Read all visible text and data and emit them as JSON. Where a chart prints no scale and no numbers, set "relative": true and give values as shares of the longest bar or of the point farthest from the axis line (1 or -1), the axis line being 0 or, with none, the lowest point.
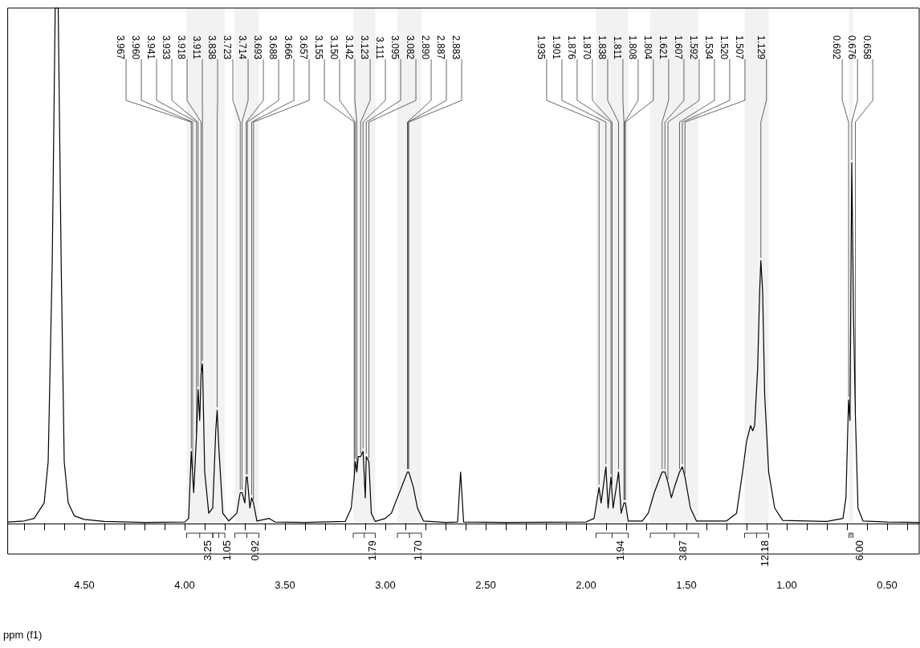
{
  "chart_data": {
    "type": "line",
    "relative": true,
    "xlabel": "ppm (f1)",
    "color": "#000000",
    "grid": false,
    "marker": "none",
    "line_style": "solid",
    "xlim": [
      4.88,
      0.34
    ],
    "xticks": [
      {
        "value": 4.8,
        "label": null
      },
      {
        "value": 4.7,
        "label": null
      },
      {
        "value": 4.6,
        "label": null
      },
      {
        "value": 4.5,
        "label": "4.50"
      },
      {
        "value": 4.4,
        "label": null
      },
      {
        "value": 4.3,
        "label": null
      },
      {
        "value": 4.2,
        "label": null
      },
      {
        "value": 4.1,
        "label": null
      },
      {
        "value": 4.0,
        "label": "4.00"
      },
      {
        "value": 3.9,
        "label": null
      },
      {
        "value": 3.8,
        "label": null
      },
      {
        "value": 3.7,
        "label": null
      },
      {
        "value": 3.6,
        "label": null
      },
      {
        "value": 3.5,
        "label": "3.50"
      },
      {
        "value": 3.4,
        "label": null
      },
      {
        "value": 3.3,
        "label": null
      },
      {
        "value": 3.2,
        "label": null
      },
      {
        "value": 3.1,
        "label": null
      },
      {
        "value": 3.0,
        "label": "3.00"
      },
      {
        "value": 2.9,
        "label": null
      },
      {
        "value": 2.8,
        "label": null
      },
      {
        "value": 2.7,
        "label": null
      },
      {
        "value": 2.6,
        "label": null
      },
      {
        "value": 2.5,
        "label": "2.50"
      },
      {
        "value": 2.4,
        "label": null
      },
      {
        "value": 2.3,
        "label": null
      },
      {
        "value": 2.2,
        "label": null
      },
      {
        "value": 2.1,
        "label": null
      },
      {
        "value": 2.0,
        "label": "2.00"
      },
      {
        "value": 1.9,
        "label": null
      },
      {
        "value": 1.8,
        "label": null
      },
      {
        "value": 1.7,
        "label": null
      },
      {
        "value": 1.6,
        "label": null
      },
      {
        "value": 1.5,
        "label": "1.50"
      },
      {
        "value": 1.4,
        "label": null
      },
      {
        "value": 1.3,
        "label": null
      },
      {
        "value": 1.2,
        "label": null
      },
      {
        "value": 1.1,
        "label": null
      },
      {
        "value": 1.0,
        "label": "1.00"
      },
      {
        "value": 0.9,
        "label": null
      },
      {
        "value": 0.8,
        "label": null
      },
      {
        "value": 0.7,
        "label": null
      },
      {
        "value": 0.6,
        "label": null
      },
      {
        "value": 0.5,
        "label": "0.50"
      },
      {
        "value": 0.4,
        "label": null
      }
    ],
    "x": [
      4.88,
      4.8,
      4.75,
      4.7,
      4.68,
      4.66,
      4.645,
      4.63,
      4.615,
      4.6,
      4.58,
      4.55,
      4.5,
      4.4,
      4.2,
      4.0,
      3.98,
      3.967,
      3.955,
      3.941,
      3.933,
      3.925,
      3.918,
      3.911,
      3.9,
      3.88,
      3.86,
      3.845,
      3.838,
      3.83,
      3.81,
      3.78,
      3.74,
      3.723,
      3.714,
      3.7,
      3.693,
      3.688,
      3.675,
      3.666,
      3.657,
      3.64,
      3.58,
      3.55,
      3.4,
      3.2,
      3.17,
      3.155,
      3.15,
      3.142,
      3.135,
      3.123,
      3.111,
      3.1,
      3.095,
      3.082,
      3.07,
      3.05,
      3.0,
      2.97,
      2.94,
      2.9,
      2.89,
      2.883,
      2.86,
      2.84,
      2.81,
      2.7,
      2.64,
      2.625,
      2.61,
      2.4,
      2.0,
      1.96,
      1.935,
      1.925,
      1.901,
      1.89,
      1.876,
      1.865,
      1.838,
      1.825,
      1.811,
      1.804,
      1.79,
      1.72,
      1.69,
      1.66,
      1.621,
      1.607,
      1.592,
      1.575,
      1.56,
      1.534,
      1.52,
      1.507,
      1.48,
      1.45,
      1.3,
      1.25,
      1.22,
      1.2,
      1.18,
      1.17,
      1.16,
      1.145,
      1.135,
      1.129,
      1.12,
      1.11,
      1.09,
      1.06,
      1.02,
      0.8,
      0.72,
      0.705,
      0.692,
      0.685,
      0.676,
      0.667,
      0.658,
      0.645,
      0.62,
      0.5,
      0.34
    ],
    "values": [
      0.003,
      0.005,
      0.01,
      0.04,
      0.12,
      0.5,
      1,
      1,
      0.5,
      0.12,
      0.04,
      0.015,
      0.008,
      0.004,
      0.002,
      0.003,
      0.01,
      0.14,
      0.06,
      0.17,
      0.26,
      0.2,
      0.29,
      0.31,
      0.1,
      0.02,
      0.03,
      0.18,
      0.22,
      0.15,
      0.02,
      0.005,
      0.02,
      0.06,
      0.06,
      0.04,
      0.09,
      0.09,
      0.03,
      0.05,
      0.04,
      0.005,
      0.01,
      0.003,
      0.002,
      0.004,
      0.03,
      0.09,
      0.12,
      0.1,
      0.13,
      0.13,
      0.14,
      0.05,
      0.13,
      0.12,
      0.02,
      0.004,
      0.01,
      0.02,
      0.05,
      0.09,
      0.1,
      0.1,
      0.07,
      0.03,
      0.005,
      0.002,
      0.003,
      0.1,
      0.003,
      0.002,
      0.003,
      0.01,
      0.07,
      0.04,
      0.11,
      0.03,
      0.09,
      0.03,
      0.1,
      0.02,
      0.04,
      0.04,
      0.005,
      0.005,
      0.02,
      0.06,
      0.1,
      0.1,
      0.08,
      0.05,
      0.07,
      0.1,
      0.11,
      0.09,
      0.03,
      0.005,
      0.005,
      0.02,
      0.1,
      0.16,
      0.19,
      0.18,
      0.19,
      0.3,
      0.45,
      0.51,
      0.45,
      0.25,
      0.1,
      0.03,
      0.006,
      0.004,
      0.01,
      0.05,
      0.24,
      0.2,
      0.7,
      0.4,
      0.21,
      0.03,
      0.005,
      0.003,
      0.002
    ],
    "annotations": [
      {
        "text": "3.967",
        "x": 3.967,
        "y": 0.14
      },
      {
        "text": "3.960",
        "x": 3.96,
        "y": 0.1
      },
      {
        "text": "3.941",
        "x": 3.941,
        "y": 0.17
      },
      {
        "text": "3.933",
        "x": 3.933,
        "y": 0.26
      },
      {
        "text": "3.918",
        "x": 3.918,
        "y": 0.29
      },
      {
        "text": "3.911",
        "x": 3.911,
        "y": 0.31
      },
      {
        "text": "3.838",
        "x": 3.838,
        "y": 0.22
      },
      {
        "text": "3.723",
        "x": 3.723,
        "y": 0.06
      },
      {
        "text": "3.714",
        "x": 3.714,
        "y": 0.06
      },
      {
        "text": "3.693",
        "x": 3.693,
        "y": 0.09
      },
      {
        "text": "3.688",
        "x": 3.688,
        "y": 0.09
      },
      {
        "text": "3.666",
        "x": 3.666,
        "y": 0.05
      },
      {
        "text": "3.657",
        "x": 3.657,
        "y": 0.04
      },
      {
        "text": "3.155",
        "x": 3.155,
        "y": 0.09
      },
      {
        "text": "3.150",
        "x": 3.15,
        "y": 0.12
      },
      {
        "text": "3.142",
        "x": 3.142,
        "y": 0.1
      },
      {
        "text": "3.123",
        "x": 3.123,
        "y": 0.13
      },
      {
        "text": "3.111",
        "x": 3.111,
        "y": 0.14
      },
      {
        "text": "3.095",
        "x": 3.095,
        "y": 0.13
      },
      {
        "text": "3.082",
        "x": 3.082,
        "y": 0.12
      },
      {
        "text": "2.890",
        "x": 2.89,
        "y": 0.1
      },
      {
        "text": "2.887",
        "x": 2.887,
        "y": 0.1
      },
      {
        "text": "2.883",
        "x": 2.883,
        "y": 0.1
      },
      {
        "text": "1.935",
        "x": 1.935,
        "y": 0.07
      },
      {
        "text": "1.901",
        "x": 1.901,
        "y": 0.11
      },
      {
        "text": "1.876",
        "x": 1.876,
        "y": 0.09
      },
      {
        "text": "1.870",
        "x": 1.87,
        "y": 0.07
      },
      {
        "text": "1.838",
        "x": 1.838,
        "y": 0.1
      },
      {
        "text": "1.811",
        "x": 1.811,
        "y": 0.04
      },
      {
        "text": "1.808",
        "x": 1.808,
        "y": 0.04
      },
      {
        "text": "1.804",
        "x": 1.804,
        "y": 0.04
      },
      {
        "text": "1.621",
        "x": 1.621,
        "y": 0.1
      },
      {
        "text": "1.607",
        "x": 1.607,
        "y": 0.1
      },
      {
        "text": "1.592",
        "x": 1.592,
        "y": 0.08
      },
      {
        "text": "1.534",
        "x": 1.534,
        "y": 0.1
      },
      {
        "text": "1.520",
        "x": 1.52,
        "y": 0.11
      },
      {
        "text": "1.507",
        "x": 1.507,
        "y": 0.09
      },
      {
        "text": "1.129",
        "x": 1.129,
        "y": 0.51
      },
      {
        "text": "0.692",
        "x": 0.692,
        "y": 0.24
      },
      {
        "text": "0.676",
        "x": 0.676,
        "y": 0.7
      },
      {
        "text": "0.658",
        "x": 0.658,
        "y": 0.21
      }
    ],
    "bands": [
      {
        "axis": "x",
        "from": 3.99,
        "to": 3.86,
        "label": "3.25"
      },
      {
        "axis": "x",
        "from": 3.86,
        "to": 3.8,
        "label": "1.05"
      },
      {
        "axis": "x",
        "from": 3.75,
        "to": 3.63,
        "label": "0.92"
      },
      {
        "axis": "x",
        "from": 3.16,
        "to": 3.05,
        "label": "1.79"
      },
      {
        "axis": "x",
        "from": 2.94,
        "to": 2.82,
        "label": "1.70"
      },
      {
        "axis": "x",
        "from": 1.95,
        "to": 1.79,
        "label": "1.94"
      },
      {
        "axis": "x",
        "from": 1.68,
        "to": 1.44,
        "label": "3.87"
      },
      {
        "axis": "x",
        "from": 1.21,
        "to": 1.09,
        "label": "12.18"
      },
      {
        "axis": "x",
        "from": 0.69,
        "to": 0.67,
        "label": "6.00"
      }
    ]
  }
}
